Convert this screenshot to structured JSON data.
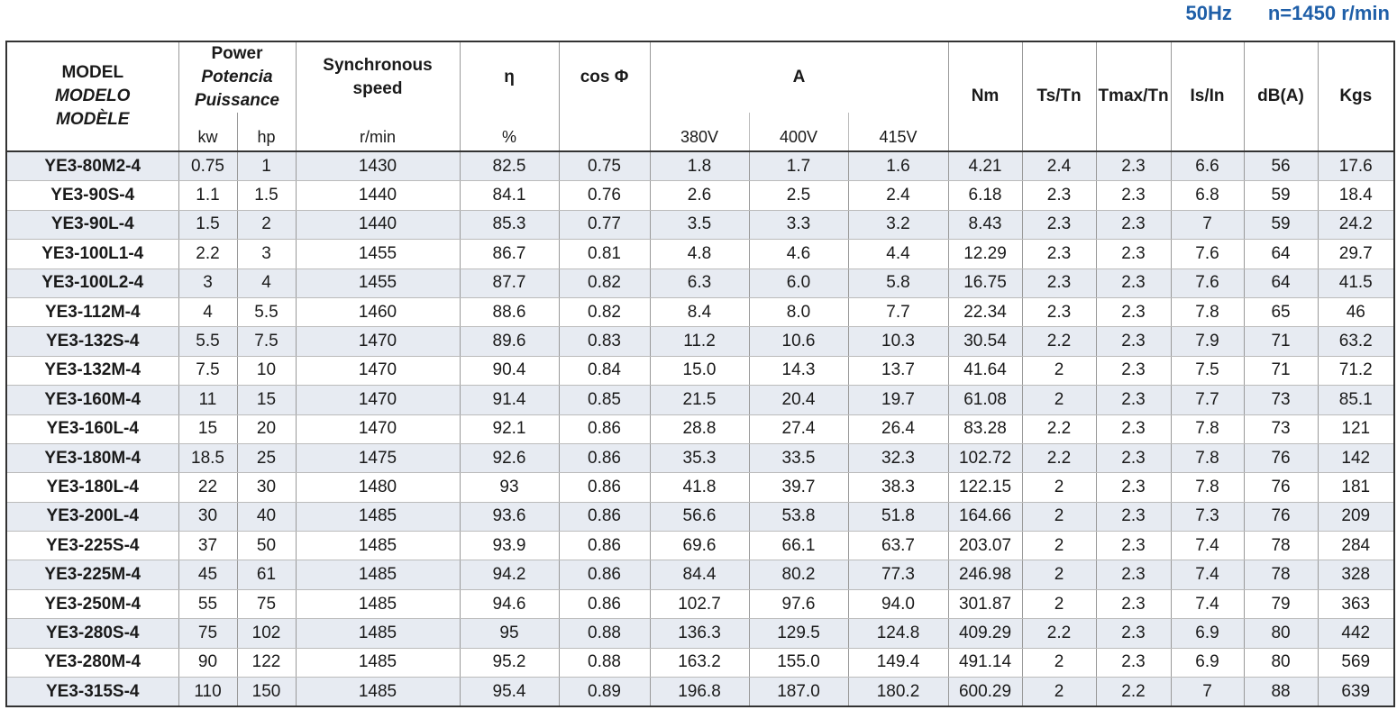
{
  "header": {
    "frequency": "50Hz",
    "speed": "n=1450 r/min"
  },
  "table": {
    "columns": {
      "model": [
        "MODEL",
        "MODELO",
        "MODÈLE"
      ],
      "power": [
        "Power",
        "Potencia",
        "Puissance"
      ],
      "power_units": [
        "kw",
        "hp"
      ],
      "sync_speed": [
        "Synchronous",
        "speed"
      ],
      "sync_speed_unit": "r/min",
      "efficiency": "η",
      "efficiency_unit": "%",
      "power_factor": "cos Φ",
      "current": "A",
      "voltages": [
        "380V",
        "400V",
        "415V"
      ],
      "torque": "Nm",
      "ts_tn": "Ts/Tn",
      "tmax_tn": "Tmax/Tn",
      "is_in": "Is/In",
      "noise": "dB(A)",
      "weight": "Kgs"
    },
    "rows": [
      [
        "YE3-80M2-4",
        "0.75",
        "1",
        "1430",
        "82.5",
        "0.75",
        "1.8",
        "1.7",
        "1.6",
        "4.21",
        "2.4",
        "2.3",
        "6.6",
        "56",
        "17.6"
      ],
      [
        "YE3-90S-4",
        "1.1",
        "1.5",
        "1440",
        "84.1",
        "0.76",
        "2.6",
        "2.5",
        "2.4",
        "6.18",
        "2.3",
        "2.3",
        "6.8",
        "59",
        "18.4"
      ],
      [
        "YE3-90L-4",
        "1.5",
        "2",
        "1440",
        "85.3",
        "0.77",
        "3.5",
        "3.3",
        "3.2",
        "8.43",
        "2.3",
        "2.3",
        "7",
        "59",
        "24.2"
      ],
      [
        "YE3-100L1-4",
        "2.2",
        "3",
        "1455",
        "86.7",
        "0.81",
        "4.8",
        "4.6",
        "4.4",
        "12.29",
        "2.3",
        "2.3",
        "7.6",
        "64",
        "29.7"
      ],
      [
        "YE3-100L2-4",
        "3",
        "4",
        "1455",
        "87.7",
        "0.82",
        "6.3",
        "6.0",
        "5.8",
        "16.75",
        "2.3",
        "2.3",
        "7.6",
        "64",
        "41.5"
      ],
      [
        "YE3-112M-4",
        "4",
        "5.5",
        "1460",
        "88.6",
        "0.82",
        "8.4",
        "8.0",
        "7.7",
        "22.34",
        "2.3",
        "2.3",
        "7.8",
        "65",
        "46"
      ],
      [
        "YE3-132S-4",
        "5.5",
        "7.5",
        "1470",
        "89.6",
        "0.83",
        "11.2",
        "10.6",
        "10.3",
        "30.54",
        "2.2",
        "2.3",
        "7.9",
        "71",
        "63.2"
      ],
      [
        "YE3-132M-4",
        "7.5",
        "10",
        "1470",
        "90.4",
        "0.84",
        "15.0",
        "14.3",
        "13.7",
        "41.64",
        "2",
        "2.3",
        "7.5",
        "71",
        "71.2"
      ],
      [
        "YE3-160M-4",
        "11",
        "15",
        "1470",
        "91.4",
        "0.85",
        "21.5",
        "20.4",
        "19.7",
        "61.08",
        "2",
        "2.3",
        "7.7",
        "73",
        "85.1"
      ],
      [
        "YE3-160L-4",
        "15",
        "20",
        "1470",
        "92.1",
        "0.86",
        "28.8",
        "27.4",
        "26.4",
        "83.28",
        "2.2",
        "2.3",
        "7.8",
        "73",
        "121"
      ],
      [
        "YE3-180M-4",
        "18.5",
        "25",
        "1475",
        "92.6",
        "0.86",
        "35.3",
        "33.5",
        "32.3",
        "102.72",
        "2.2",
        "2.3",
        "7.8",
        "76",
        "142"
      ],
      [
        "YE3-180L-4",
        "22",
        "30",
        "1480",
        "93",
        "0.86",
        "41.8",
        "39.7",
        "38.3",
        "122.15",
        "2",
        "2.3",
        "7.8",
        "76",
        "181"
      ],
      [
        "YE3-200L-4",
        "30",
        "40",
        "1485",
        "93.6",
        "0.86",
        "56.6",
        "53.8",
        "51.8",
        "164.66",
        "2",
        "2.3",
        "7.3",
        "76",
        "209"
      ],
      [
        "YE3-225S-4",
        "37",
        "50",
        "1485",
        "93.9",
        "0.86",
        "69.6",
        "66.1",
        "63.7",
        "203.07",
        "2",
        "2.3",
        "7.4",
        "78",
        "284"
      ],
      [
        "YE3-225M-4",
        "45",
        "61",
        "1485",
        "94.2",
        "0.86",
        "84.4",
        "80.2",
        "77.3",
        "246.98",
        "2",
        "2.3",
        "7.4",
        "78",
        "328"
      ],
      [
        "YE3-250M-4",
        "55",
        "75",
        "1485",
        "94.6",
        "0.86",
        "102.7",
        "97.6",
        "94.0",
        "301.87",
        "2",
        "2.3",
        "7.4",
        "79",
        "363"
      ],
      [
        "YE3-280S-4",
        "75",
        "102",
        "1485",
        "95",
        "0.88",
        "136.3",
        "129.5",
        "124.8",
        "409.29",
        "2.2",
        "2.3",
        "6.9",
        "80",
        "442"
      ],
      [
        "YE3-280M-4",
        "90",
        "122",
        "1485",
        "95.2",
        "0.88",
        "163.2",
        "155.0",
        "149.4",
        "491.14",
        "2",
        "2.3",
        "6.9",
        "80",
        "569"
      ],
      [
        "YE3-315S-4",
        "110",
        "150",
        "1485",
        "95.4",
        "0.89",
        "196.8",
        "187.0",
        "180.2",
        "600.29",
        "2",
        "2.2",
        "7",
        "88",
        "639"
      ]
    ]
  }
}
